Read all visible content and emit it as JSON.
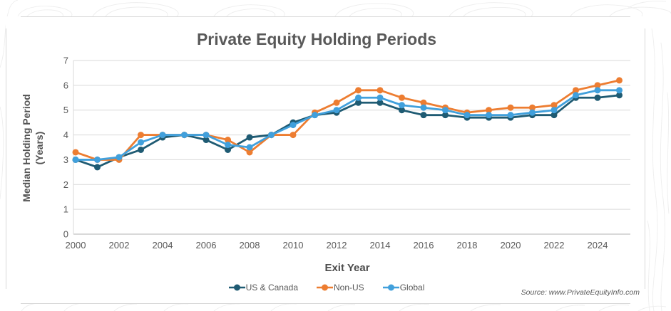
{
  "title": "Private Equity Holding Periods",
  "y_axis": {
    "label_line1": "Median Holding Period",
    "label_line2": "(Years)",
    "tick_labels": [
      "0",
      "1",
      "2",
      "3",
      "4",
      "5",
      "6",
      "7"
    ]
  },
  "x_axis": {
    "label": "Exit Year",
    "tick_labels": [
      "2000",
      "2002",
      "2004",
      "2006",
      "2008",
      "2010",
      "2012",
      "2014",
      "2016",
      "2018",
      "2020",
      "2022",
      "2024"
    ]
  },
  "source": "Source: www.PrivateEquityInfo.com",
  "colors": {
    "us_canada": "#1F5B73",
    "non_us": "#ED7D31",
    "global": "#41A0DC",
    "grid": "#D9D9D9",
    "axis": "#B3B3B3",
    "title_text": "#595959",
    "tick_text": "#595959"
  },
  "chart_data": {
    "type": "line",
    "title": "Private Equity Holding Periods",
    "xlabel": "Exit Year",
    "ylabel": "Median Holding Period (Years)",
    "ylim": [
      0,
      7
    ],
    "grid": true,
    "legend_position": "bottom",
    "x": [
      2000,
      2001,
      2002,
      2003,
      2004,
      2005,
      2006,
      2007,
      2008,
      2009,
      2010,
      2011,
      2012,
      2013,
      2014,
      2015,
      2016,
      2017,
      2018,
      2019,
      2020,
      2021,
      2022,
      2023,
      2024,
      2025
    ],
    "series": [
      {
        "name": "US & Canada",
        "color_key": "us_canada",
        "values": [
          3.0,
          2.7,
          3.1,
          3.4,
          3.9,
          4.0,
          3.8,
          3.4,
          3.9,
          4.0,
          4.5,
          4.8,
          4.9,
          5.3,
          5.3,
          5.0,
          4.8,
          4.8,
          4.7,
          4.7,
          4.7,
          4.8,
          4.8,
          5.5,
          5.5,
          5.6
        ]
      },
      {
        "name": "Non-US",
        "color_key": "non_us",
        "values": [
          3.3,
          3.0,
          3.0,
          4.0,
          4.0,
          4.0,
          4.0,
          3.8,
          3.3,
          4.0,
          4.0,
          4.9,
          5.3,
          5.8,
          5.8,
          5.5,
          5.3,
          5.1,
          4.9,
          5.0,
          5.1,
          5.1,
          5.2,
          5.8,
          6.0,
          6.2
        ]
      },
      {
        "name": "Global",
        "color_key": "global",
        "values": [
          3.0,
          3.0,
          3.1,
          3.7,
          4.0,
          4.0,
          4.0,
          3.6,
          3.5,
          4.0,
          4.4,
          4.8,
          5.0,
          5.5,
          5.5,
          5.2,
          5.1,
          5.0,
          4.8,
          4.8,
          4.8,
          4.9,
          5.0,
          5.6,
          5.8,
          5.8
        ]
      }
    ]
  }
}
